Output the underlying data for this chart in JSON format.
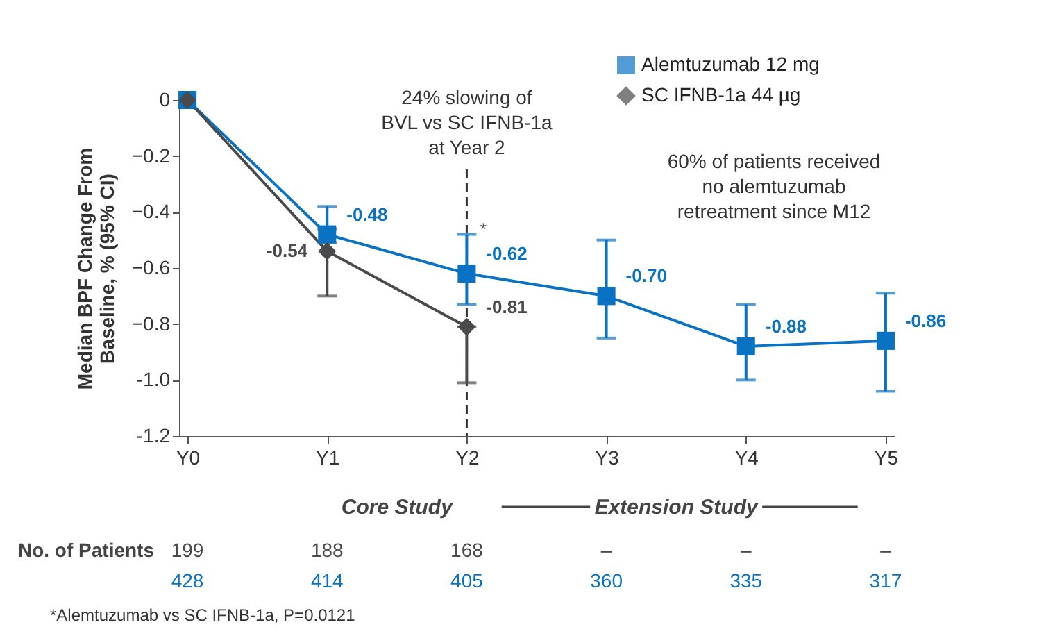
{
  "chart_data": {
    "type": "line",
    "ylabel": "Median BPF Change From Baseline, % (95% CI)",
    "categories": [
      "Y0",
      "Y1",
      "Y2",
      "Y3",
      "Y4",
      "Y5"
    ],
    "series": [
      {
        "name": "Alemtuzumab 12 mg",
        "color": "#0a72c2",
        "marker": "square",
        "values": [
          0,
          -0.48,
          -0.62,
          -0.7,
          -0.88,
          -0.86
        ],
        "errors": [
          null,
          [
            -0.51,
            -0.38
          ],
          [
            -0.73,
            -0.48
          ],
          [
            -0.85,
            -0.5
          ],
          [
            -1.0,
            -0.73
          ],
          [
            -1.04,
            -0.69
          ]
        ],
        "value_labels": [
          null,
          "-0.48",
          "-0.62",
          "-0.70",
          "-0.88",
          "-0.86"
        ]
      },
      {
        "name": "SC IFNB-1a 44 µg",
        "color": "#4a4a4c",
        "marker": "diamond",
        "values": [
          0,
          -0.54,
          -0.81,
          null,
          null,
          null
        ],
        "errors": [
          null,
          [
            -0.7,
            -0.46
          ],
          [
            -1.01,
            -0.81
          ],
          null,
          null,
          null
        ],
        "value_labels": [
          null,
          "-0.54",
          "-0.81",
          null,
          null,
          null
        ]
      }
    ],
    "ylim": [
      -1.2,
      0
    ],
    "yticks": [
      {
        "value": -1.2,
        "label": "-1.2"
      },
      {
        "value": -1,
        "label": "-1.0"
      },
      -0.8,
      -0.6,
      -0.4,
      -0.2,
      0
    ],
    "ref_lines": [
      {
        "axis": "x",
        "value": "Y2",
        "label": "24% slowing of BVL vs SC IFNB-1a at Year 2",
        "line_style": "dashed",
        "color": "#333333"
      }
    ],
    "legend": "top right",
    "annotations": [
      "60% of patients received no alemtuzumab retreatment since M12",
      "*",
      "Core Study",
      "Extension Study",
      "No. of Patients",
      "199",
      "188",
      "168",
      "–",
      "–",
      "–",
      "428",
      "414",
      "405",
      "360",
      "335",
      "317",
      "*Alemtuzumab vs SC IFNB-1a, P=0.0121"
    ]
  }
}
